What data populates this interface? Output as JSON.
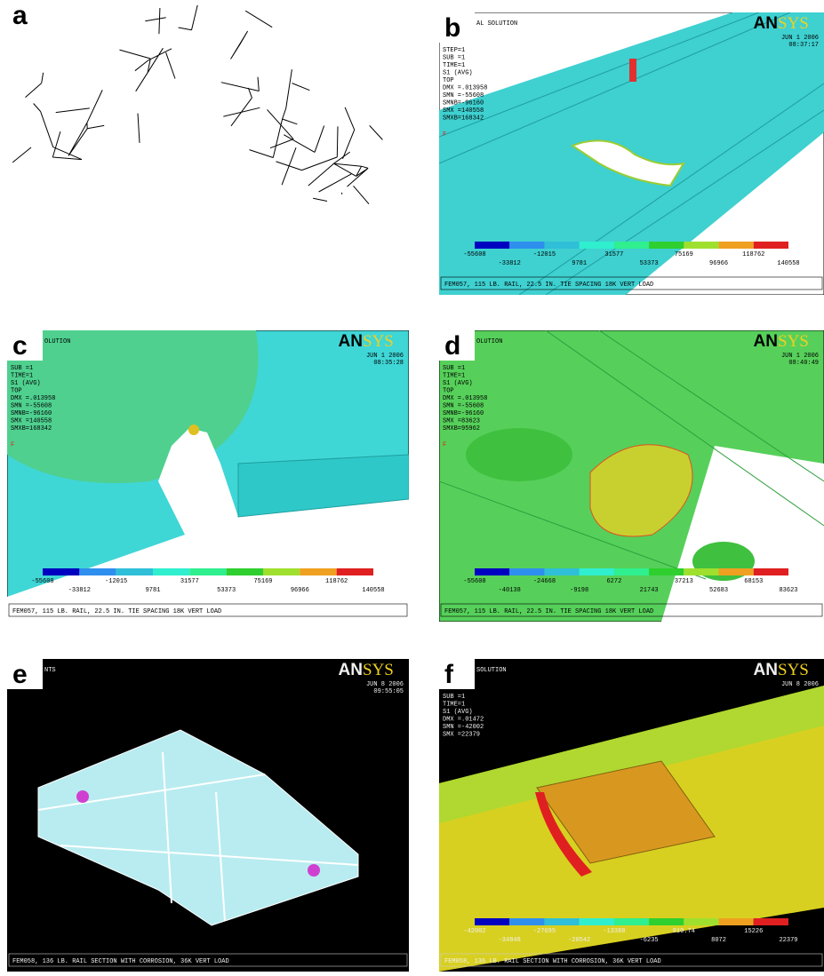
{
  "panels": [
    {
      "letter": "a"
    },
    {
      "letter": "b",
      "logo_left": "AN",
      "logo_right": "SYS",
      "heading": "AL SOLUTION",
      "info": [
        "STEP=1",
        "SUB =1",
        "TIME=1",
        "S1       (AVG)",
        "TOP",
        "DMX =.013958",
        "SMN =-55608",
        "SMNB=-96160",
        "SMX =140558",
        "SMXB=168342"
      ],
      "marker": "F",
      "date": "JUN  1 2006",
      "time": "08:37:17",
      "legend": [
        "-55608",
        "-33812",
        "-12015",
        "9781",
        "31577",
        "53373",
        "75169",
        "96966",
        "118762",
        "140558"
      ],
      "footer": "FEM057, 115 LB. RAIL, 22.5 IN. TIE SPACING 18K VERT LOAD"
    },
    {
      "letter": "c",
      "logo_left": "AN",
      "logo_right": "SYS",
      "heading": "OLUTION",
      "info": [
        "SUB =1",
        "TIME=1",
        "S1       (AVG)",
        "TOP",
        "DMX =.013958",
        "SMN =-55608",
        "SMNB=-96160",
        "SMX =140558",
        "SMXB=168342"
      ],
      "marker": "F",
      "date": "JUN  1 2006",
      "time": "08:35:28",
      "legend": [
        "-55608",
        "-33812",
        "-12015",
        "9781",
        "31577",
        "53373",
        "75169",
        "96966",
        "118762",
        "140558"
      ],
      "footer": "FEM057, 115 LB. RAIL, 22.5 IN. TIE SPACING 18K VERT LOAD"
    },
    {
      "letter": "d",
      "logo_left": "AN",
      "logo_right": "SYS",
      "heading": "OLUTION",
      "info": [
        "SUB =1",
        "TIME=1",
        "S1       (AVG)",
        "TOP",
        "DMX =.013958",
        "SMN =-55608",
        "SMNB=-96160",
        "SMX =83623",
        "SMXB=95962"
      ],
      "marker": "F",
      "date": "JUN  1 2006",
      "time": "08:40:49",
      "legend": [
        "-55608",
        "-40138",
        "-24668",
        "-9198",
        "6272",
        "21743",
        "37213",
        "52683",
        "68153",
        "83623"
      ],
      "footer": "FEM057, 115 LB. RAIL, 22.5 IN. TIE SPACING 18K VERT LOAD"
    },
    {
      "letter": "e",
      "logo_left": "AN",
      "logo_right": "SYS",
      "heading": "NTS",
      "date": "JUN  8 2006",
      "time": "09:55:05",
      "footer": "FEM058, 136 LB. RAIL SECTION WITH CORROSION, 36K VERT LOAD"
    },
    {
      "letter": "f",
      "logo_left": "AN",
      "logo_right": "SYS",
      "heading": "SOLUTION",
      "info": [
        "SUB =1",
        "TIME=1",
        "S1       (AVG)",
        "DMX =.01472",
        "SMN =-42002",
        "SMX =22379"
      ],
      "date": "JUN  8 2006",
      "legend": [
        "-42002",
        "-34848",
        "-27695",
        "-20542",
        "-13388",
        "-6235",
        "910.74",
        "8072",
        "15226",
        "22379"
      ],
      "footer": "FEM058, 136 LB. RAIL SECTION WITH CORROSION, 36K VERT LOAD"
    }
  ]
}
